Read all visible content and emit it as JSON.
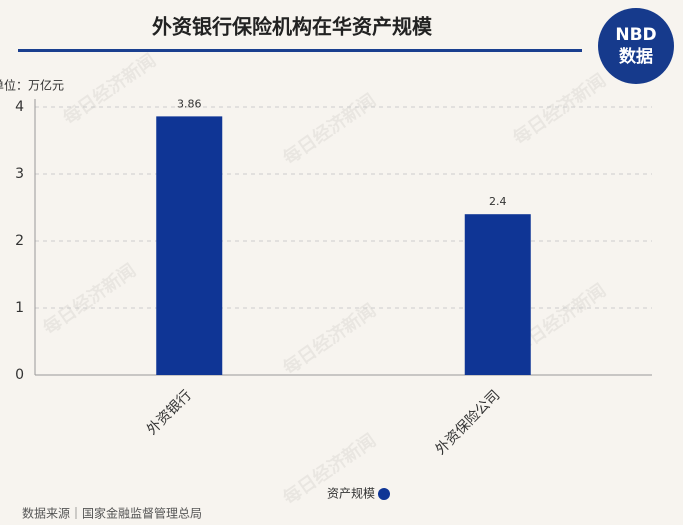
{
  "chart_data": {
    "type": "bar",
    "title": "外资银行保险机构在华资产规模",
    "unit_label": "单位：万亿元",
    "categories": [
      "外资银行",
      "外资保险公司"
    ],
    "series": [
      {
        "name": "资产规模",
        "color": "#0f3595",
        "values": [
          3.86,
          2.4
        ]
      }
    ],
    "ylim": [
      0,
      4
    ],
    "yticks": [
      0,
      1,
      2,
      3,
      4
    ],
    "grid": true,
    "legend": "bottom",
    "source": "数据来源｜国家金融监督管理总局",
    "logo": {
      "line1": "NBD",
      "line2": "数据"
    },
    "watermark": "每日经济新闻"
  }
}
